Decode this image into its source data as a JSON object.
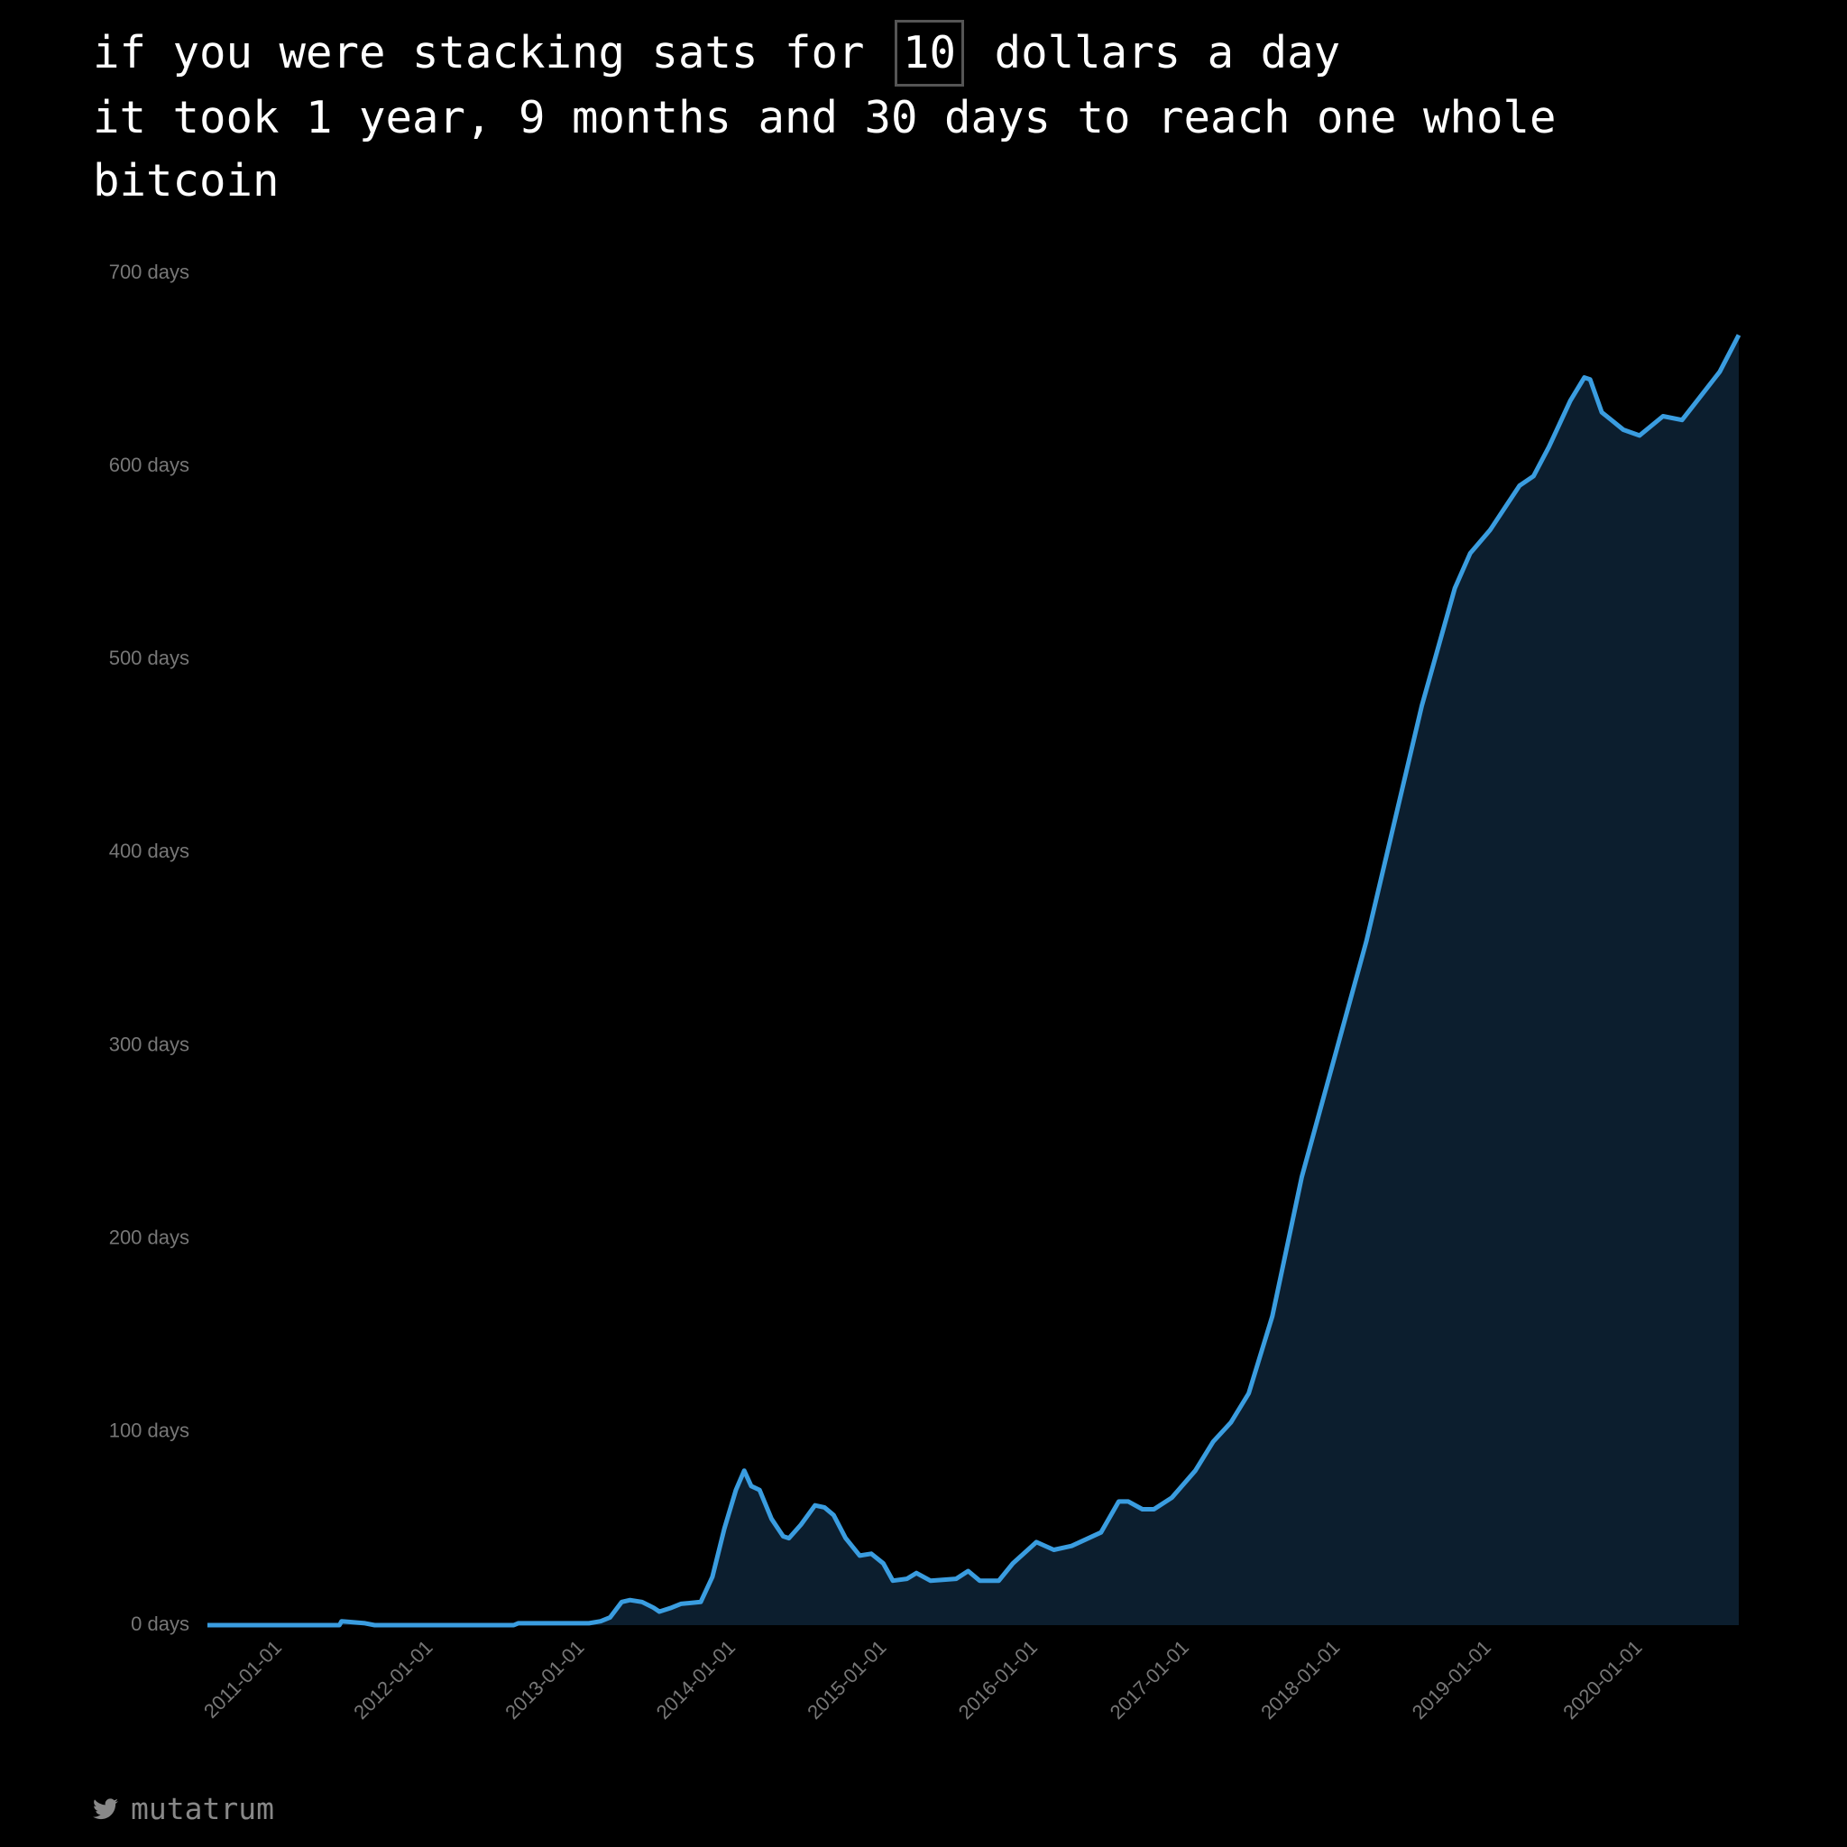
{
  "header": {
    "prefix": "if you were stacking sats for",
    "amount": "10",
    "suffix": "dollars a day",
    "result": "it took 1 year, 9 months and 30 days to reach one whole bitcoin"
  },
  "footer": {
    "handle": "mutatrum"
  },
  "chart_data": {
    "type": "area",
    "color": "#3a9de0",
    "fill": "#0c1e2e",
    "x": [
      "2010-07-03",
      "2011-05-18",
      "2011-05-23",
      "2011-07-19",
      "2011-08-11",
      "2012-07-12",
      "2012-07-23",
      "2013-01-10",
      "2013-02-07",
      "2013-03-02",
      "2013-03-30",
      "2013-04-19",
      "2013-05-18",
      "2013-06-15",
      "2013-06-29",
      "2013-07-28",
      "2013-08-20",
      "2013-10-07",
      "2013-11-04",
      "2013-12-03",
      "2013-12-31",
      "2014-01-20",
      "2014-02-06",
      "2014-02-26",
      "2014-03-27",
      "2014-04-24",
      "2014-05-08",
      "2014-06-06",
      "2014-07-10",
      "2014-08-02",
      "2014-08-24",
      "2014-09-22",
      "2014-10-26",
      "2014-11-23",
      "2014-12-22",
      "2015-01-14",
      "2015-02-17",
      "2015-03-12",
      "2015-04-15",
      "2015-06-16",
      "2015-07-15",
      "2015-08-12",
      "2015-09-27",
      "2015-10-31",
      "2015-12-27",
      "2016-02-07",
      "2016-03-21",
      "2016-05-31",
      "2016-07-13",
      "2016-08-05",
      "2016-09-08",
      "2016-10-06",
      "2016-11-18",
      "2017-01-14",
      "2017-02-26",
      "2017-04-10",
      "2017-05-23",
      "2017-07-19",
      "2017-09-28",
      "2018-03-03",
      "2018-07-15",
      "2018-10-03",
      "2018-11-09",
      "2018-12-27",
      "2019-02-02",
      "2019-03-08",
      "2019-04-11",
      "2019-05-18",
      "2019-07-09",
      "2019-08-12",
      "2019-08-26",
      "2019-09-23",
      "2019-10-16",
      "2019-11-14",
      "2019-12-23",
      "2020-02-18",
      "2020-04-04",
      "2020-05-14",
      "2020-07-04",
      "2020-08-19"
    ],
    "values": [
      0,
      0,
      2,
      1,
      0,
      0,
      1,
      1,
      2,
      4,
      12,
      13,
      12,
      9,
      7,
      9,
      11,
      12,
      25,
      50,
      70,
      80,
      72,
      70,
      55,
      46,
      45,
      52,
      62,
      61,
      57,
      45,
      36,
      37,
      32,
      23,
      24,
      27,
      23,
      24,
      28,
      23,
      23,
      32,
      43,
      39,
      41,
      48,
      64,
      64,
      60,
      60,
      66,
      80,
      95,
      105,
      120,
      160,
      232,
      354,
      476,
      537,
      555,
      567,
      579,
      590,
      595,
      610,
      634,
      646,
      645,
      628,
      624,
      619,
      616,
      626,
      624,
      635,
      649,
      668
    ],
    "xlim": [
      "2010-07-03",
      "2020-08-19"
    ],
    "xticks": [
      "2011-01-01",
      "2012-01-01",
      "2013-01-01",
      "2014-01-01",
      "2015-01-01",
      "2016-01-01",
      "2017-01-01",
      "2018-01-01",
      "2019-01-01",
      "2020-01-01"
    ],
    "ylim": [
      0,
      700
    ],
    "yticks": [
      {
        "value": 0,
        "label": "0 days"
      },
      {
        "value": 100,
        "label": "100 days"
      },
      {
        "value": 200,
        "label": "200 days"
      },
      {
        "value": 300,
        "label": "300 days"
      },
      {
        "value": 400,
        "label": "400 days"
      },
      {
        "value": 500,
        "label": "500 days"
      },
      {
        "value": 600,
        "label": "600 days"
      },
      {
        "value": 700,
        "label": "700 days"
      }
    ]
  }
}
